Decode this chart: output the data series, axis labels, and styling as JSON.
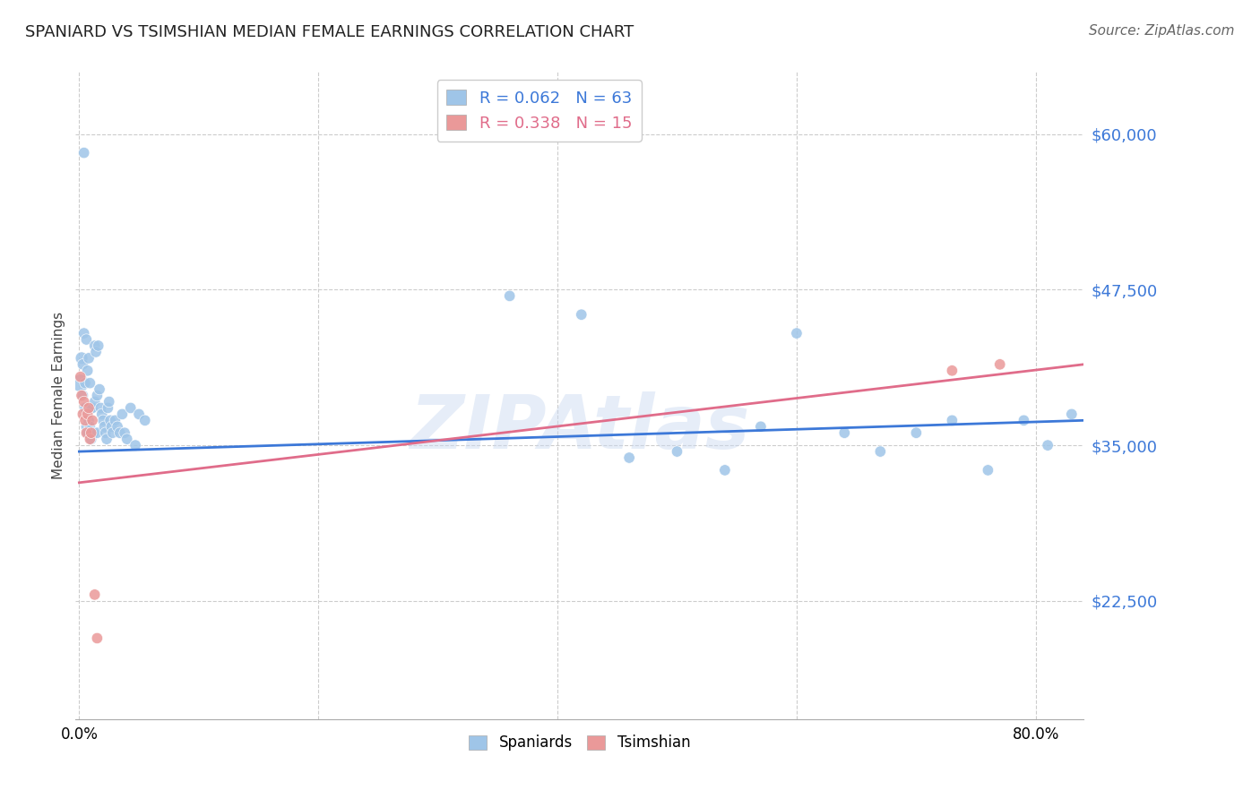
{
  "title": "SPANIARD VS TSIMSHIAN MEDIAN FEMALE EARNINGS CORRELATION CHART",
  "source": "Source: ZipAtlas.com",
  "ylabel": "Median Female Earnings",
  "yticks": [
    22500,
    35000,
    47500,
    60000
  ],
  "ytick_labels": [
    "$22,500",
    "$35,000",
    "$47,500",
    "$60,000"
  ],
  "ymin": 13000,
  "ymax": 65000,
  "xmin": -0.003,
  "xmax": 0.84,
  "blue_color": "#9fc5e8",
  "pink_color": "#ea9999",
  "line_blue_color": "#3c78d8",
  "line_pink_color": "#e06c8a",
  "watermark": "ZIPAtlas",
  "spaniards_x": [
    0.001,
    0.002,
    0.003,
    0.003,
    0.004,
    0.004,
    0.005,
    0.005,
    0.006,
    0.006,
    0.007,
    0.007,
    0.008,
    0.008,
    0.009,
    0.009,
    0.01,
    0.01,
    0.011,
    0.012,
    0.013,
    0.013,
    0.014,
    0.015,
    0.015,
    0.016,
    0.017,
    0.018,
    0.019,
    0.02,
    0.021,
    0.022,
    0.023,
    0.024,
    0.025,
    0.026,
    0.027,
    0.028,
    0.03,
    0.032,
    0.034,
    0.036,
    0.038,
    0.04,
    0.043,
    0.047,
    0.05,
    0.055,
    0.36,
    0.42,
    0.46,
    0.5,
    0.54,
    0.57,
    0.6,
    0.64,
    0.67,
    0.7,
    0.73,
    0.76,
    0.79,
    0.81,
    0.83
  ],
  "spaniards_y": [
    40000,
    42000,
    41500,
    39000,
    58500,
    44000,
    40000,
    38000,
    43500,
    36500,
    41000,
    36000,
    42000,
    37000,
    40000,
    36500,
    38000,
    35500,
    38000,
    36000,
    43000,
    38500,
    42500,
    39000,
    36000,
    43000,
    39500,
    38000,
    37500,
    37000,
    36500,
    36000,
    35500,
    38000,
    38500,
    37000,
    36500,
    36000,
    37000,
    36500,
    36000,
    37500,
    36000,
    35500,
    38000,
    35000,
    37500,
    37000,
    47000,
    45500,
    34000,
    34500,
    33000,
    36500,
    44000,
    36000,
    34500,
    36000,
    37000,
    33000,
    37000,
    35000,
    37500
  ],
  "spaniards_size": [
    200,
    100,
    80,
    80,
    80,
    80,
    80,
    80,
    80,
    80,
    80,
    80,
    80,
    80,
    80,
    80,
    80,
    80,
    80,
    80,
    80,
    80,
    80,
    80,
    80,
    80,
    80,
    80,
    80,
    80,
    80,
    80,
    80,
    80,
    80,
    80,
    80,
    80,
    80,
    80,
    80,
    80,
    80,
    80,
    80,
    80,
    80,
    80,
    80,
    80,
    80,
    80,
    80,
    80,
    80,
    80,
    80,
    80,
    80,
    80,
    80,
    80,
    80
  ],
  "tsimshian_x": [
    0.001,
    0.002,
    0.003,
    0.004,
    0.005,
    0.006,
    0.007,
    0.008,
    0.009,
    0.01,
    0.011,
    0.013,
    0.015,
    0.73,
    0.77
  ],
  "tsimshian_y": [
    40500,
    39000,
    37500,
    38500,
    37000,
    36000,
    37500,
    38000,
    35500,
    36000,
    37000,
    23000,
    19500,
    41000,
    41500
  ],
  "tsimshian_size": [
    80,
    80,
    80,
    80,
    80,
    80,
    80,
    80,
    80,
    80,
    80,
    80,
    80,
    80,
    80
  ],
  "blue_line_x": [
    0.0,
    0.84
  ],
  "blue_line_y": [
    34500,
    37000
  ],
  "pink_line_x": [
    0.0,
    0.84
  ],
  "pink_line_y": [
    32000,
    41500
  ]
}
